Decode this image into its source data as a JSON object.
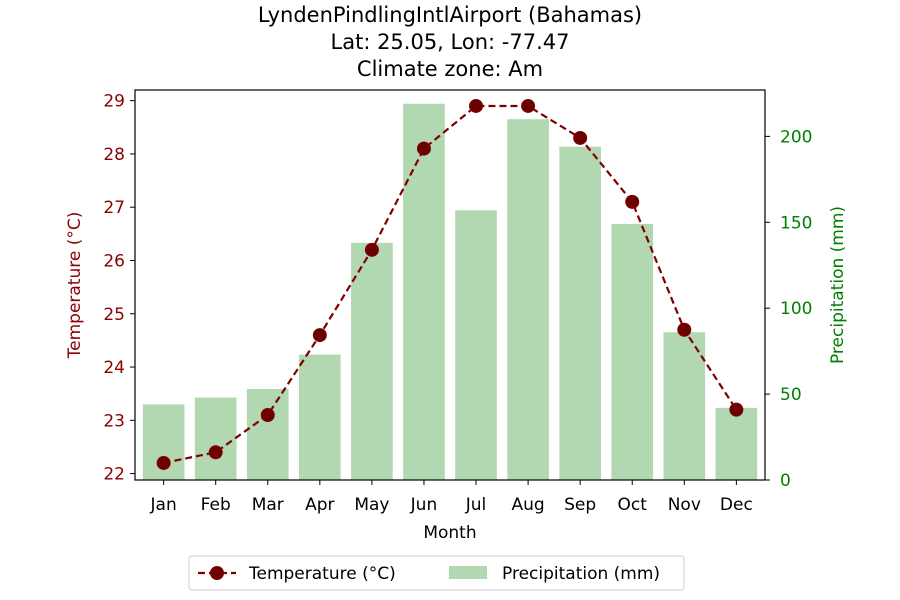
{
  "chart_data": {
    "type": "bar+line",
    "title": [
      "LyndenPindlingIntlAirport (Bahamas)",
      "Lat: 25.05, Lon: -77.47",
      "Climate zone: Am"
    ],
    "xlabel": "Month",
    "categories": [
      "Jan",
      "Feb",
      "Mar",
      "Apr",
      "May",
      "Jun",
      "Jul",
      "Aug",
      "Sep",
      "Oct",
      "Nov",
      "Dec"
    ],
    "temperature": {
      "name": "Temperature (°C)",
      "ylabel": "Temperature (°C)",
      "values": [
        22.2,
        22.4,
        23.1,
        24.6,
        26.2,
        28.1,
        28.9,
        28.9,
        28.3,
        27.1,
        24.7,
        23.2
      ],
      "ylim": [
        21.88,
        29.2
      ],
      "ticks": [
        22,
        23,
        24,
        25,
        26,
        27,
        28,
        29
      ],
      "color": "#800000"
    },
    "precipitation": {
      "name": "Precipitation (mm)",
      "ylabel": "Precipitation (mm)",
      "values": [
        44,
        48,
        53,
        73,
        138,
        219,
        157,
        210,
        194,
        149,
        86,
        42
      ],
      "ylim": [
        0,
        227
      ],
      "ticks": [
        0,
        50,
        100,
        150,
        200
      ],
      "color": "#b2d8b2"
    },
    "legend": {
      "position": "bottom-center"
    },
    "grid": false
  }
}
